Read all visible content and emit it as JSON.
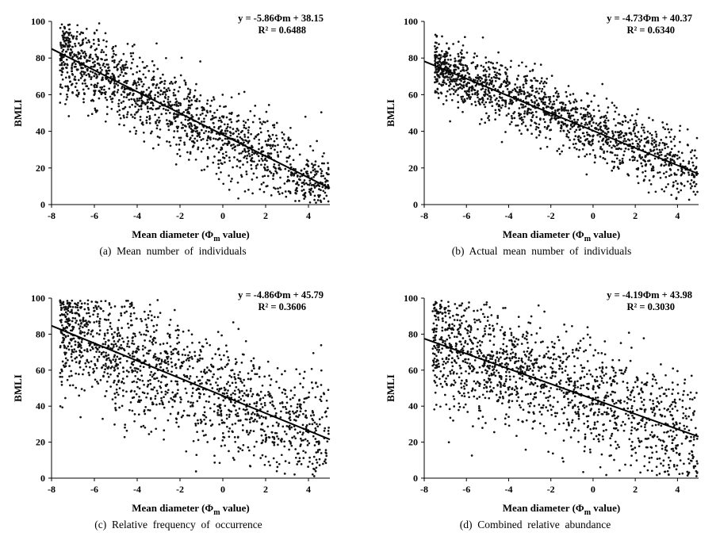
{
  "chart_data": [
    {
      "type": "scatter",
      "caption": "(a)  Mean  number  of  individuals",
      "ylabel": "BMLI",
      "xlabel": "Mean diameter (",
      "xlabel_symbol": "Φ",
      "xlabel_sub": "m",
      "xlabel_tail": " value)",
      "xlim": [
        -8,
        5
      ],
      "ylim": [
        0,
        100
      ],
      "x_ticks": [
        -8,
        -6,
        -4,
        -2,
        0,
        2,
        4
      ],
      "y_ticks": [
        0,
        20,
        40,
        60,
        80,
        100
      ],
      "equation": "y = -5.86Φm + 38.15",
      "r_squared": "R² = 0.6488",
      "trend": {
        "slope": -5.86,
        "intercept": 38.15
      },
      "point_cloud": {
        "seed": 11,
        "count": 1500,
        "x_range": [
          -7.6,
          4.95
        ],
        "spread_sd": 10.5,
        "x_skew_start": -7.6,
        "x_sparse_end": 4.95
      }
    },
    {
      "type": "scatter",
      "caption": "(b)  Actual  mean  number  of  individuals",
      "ylabel": "BMLI",
      "xlabel": "Mean diameter (",
      "xlabel_symbol": "Φ",
      "xlabel_sub": "m",
      "xlabel_tail": " value)",
      "xlim": [
        -8,
        5
      ],
      "ylim": [
        0,
        100
      ],
      "x_ticks": [
        -8,
        -6,
        -4,
        -2,
        0,
        2,
        4
      ],
      "y_ticks": [
        0,
        20,
        40,
        60,
        80,
        100
      ],
      "equation": "y = -4.73Φm + 40.37",
      "r_squared": "R² = 0.6340",
      "trend": {
        "slope": -4.73,
        "intercept": 40.37
      },
      "point_cloud": {
        "seed": 23,
        "count": 1500,
        "x_range": [
          -7.5,
          4.95
        ],
        "spread_sd": 8.5,
        "x_skew_start": -7.5,
        "x_sparse_end": 4.95
      }
    },
    {
      "type": "scatter",
      "caption": "(c)  Relative  frequency  of  occurrence",
      "ylabel": "BMLI",
      "xlabel": "Mean diameter (",
      "xlabel_symbol": "Φ",
      "xlabel_sub": "m",
      "xlabel_tail": " value)",
      "xlim": [
        -8,
        5
      ],
      "ylim": [
        0,
        100
      ],
      "x_ticks": [
        -8,
        -6,
        -4,
        -2,
        0,
        2,
        4
      ],
      "y_ticks": [
        0,
        20,
        40,
        60,
        80,
        100
      ],
      "equation": "y = -4.86Φm + 45.79",
      "r_squared": "R² = 0.3606",
      "trend": {
        "slope": -4.86,
        "intercept": 45.79
      },
      "point_cloud": {
        "seed": 37,
        "count": 1500,
        "x_range": [
          -7.6,
          4.95
        ],
        "spread_sd": 16.0,
        "x_skew_start": -7.6,
        "x_sparse_end": 4.95
      }
    },
    {
      "type": "scatter",
      "caption": "(d)  Combined  relative  abundance",
      "ylabel": "BMLI",
      "xlabel": "Mean diameter (",
      "xlabel_symbol": "Φ",
      "xlabel_sub": "m",
      "xlabel_tail": " value)",
      "xlim": [
        -8,
        5
      ],
      "ylim": [
        0,
        100
      ],
      "x_ticks": [
        -8,
        -6,
        -4,
        -2,
        0,
        2,
        4
      ],
      "y_ticks": [
        0,
        20,
        40,
        60,
        80,
        100
      ],
      "equation": "y = -4.19Φm + 43.98",
      "r_squared": "R² = 0.3030",
      "trend": {
        "slope": -4.19,
        "intercept": 43.98
      },
      "point_cloud": {
        "seed": 53,
        "count": 1500,
        "x_range": [
          -7.6,
          4.95
        ],
        "spread_sd": 16.0,
        "x_skew_start": -7.6,
        "x_sparse_end": 4.95
      }
    }
  ],
  "colors": {
    "points": "#111111",
    "line": "#000000",
    "axis": "#000000"
  }
}
